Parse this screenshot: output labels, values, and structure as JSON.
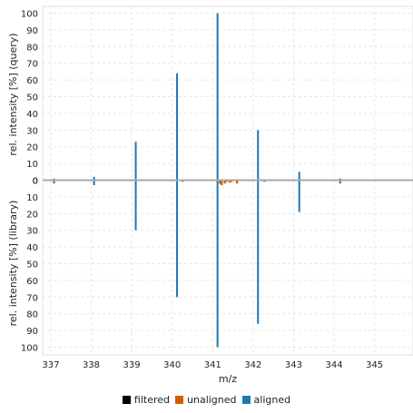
{
  "chart_data": {
    "type": "bar",
    "subtype": "mirror-spectrum",
    "xlabel": "m/z",
    "ylabel_top": "rel. intensity [%] (query)",
    "ylabel_bottom": "rel. intensity [%] (library)",
    "xlim": [
      336.8,
      345.95
    ],
    "ylim": [
      -101,
      102
    ],
    "x_ticks": [
      "337",
      "338",
      "339",
      "340",
      "341",
      "342",
      "343",
      "344",
      "345"
    ],
    "x_tick_values": [
      337,
      338,
      339,
      340,
      341,
      342,
      343,
      344,
      345
    ],
    "y_ticks_top": [
      "0",
      "10",
      "20",
      "30",
      "40",
      "50",
      "60",
      "70",
      "80",
      "90",
      "100"
    ],
    "y_ticks_bottom": [
      "0",
      "10",
      "20",
      "30",
      "40",
      "50",
      "60",
      "70",
      "80",
      "90",
      "100"
    ],
    "grid": true,
    "legend_position": "bottom",
    "legend": [
      {
        "label": "filtered",
        "color": "#000000"
      },
      {
        "label": "unaligned",
        "color": "#d55e00"
      },
      {
        "label": "aligned",
        "color": "#1f77b4"
      }
    ],
    "series": [
      {
        "name": "aligned",
        "color": "#1f77b4",
        "query": [
          {
            "x": 337.08,
            "y": 1
          },
          {
            "x": 338.07,
            "y": 2
          },
          {
            "x": 339.1,
            "y": 23
          },
          {
            "x": 340.12,
            "y": 64
          },
          {
            "x": 341.12,
            "y": 100
          },
          {
            "x": 342.12,
            "y": 30
          },
          {
            "x": 343.14,
            "y": 5
          },
          {
            "x": 344.15,
            "y": 1
          }
        ],
        "library": [
          {
            "x": 337.08,
            "y": 2
          },
          {
            "x": 338.07,
            "y": 3
          },
          {
            "x": 339.1,
            "y": 30
          },
          {
            "x": 340.12,
            "y": 70
          },
          {
            "x": 341.12,
            "y": 100
          },
          {
            "x": 342.12,
            "y": 86
          },
          {
            "x": 343.14,
            "y": 19
          },
          {
            "x": 344.15,
            "y": 2
          }
        ]
      },
      {
        "name": "unaligned",
        "color": "#d55e00",
        "query": [],
        "library": [
          {
            "x": 340.26,
            "y": 1
          },
          {
            "x": 341.18,
            "y": 2
          },
          {
            "x": 341.22,
            "y": 3
          },
          {
            "x": 341.3,
            "y": 2
          },
          {
            "x": 341.34,
            "y": 1
          },
          {
            "x": 341.42,
            "y": 1.5
          },
          {
            "x": 341.47,
            "y": 1
          },
          {
            "x": 341.6,
            "y": 2
          },
          {
            "x": 342.28,
            "y": 1
          }
        ]
      },
      {
        "name": "filtered",
        "color": "#000000",
        "query": [],
        "library": []
      }
    ]
  }
}
